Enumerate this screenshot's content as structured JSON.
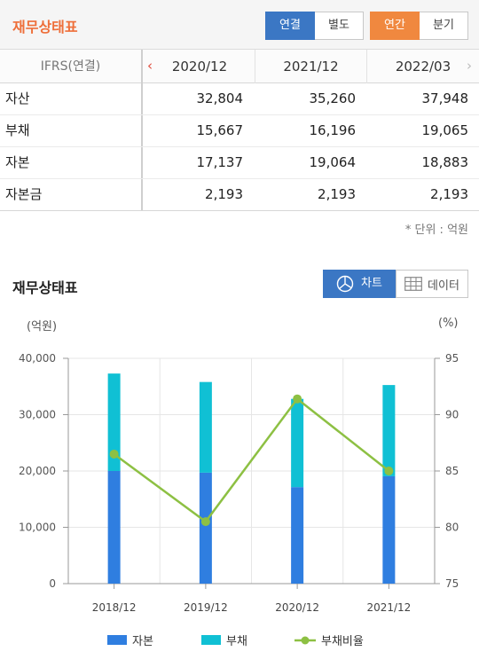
{
  "header": {
    "title": "재무상태표",
    "seg1": [
      "연결",
      "별도"
    ],
    "seg2": [
      "연간",
      "분기"
    ]
  },
  "table": {
    "corner": "IFRS(연결)",
    "prev": "‹",
    "next": "›",
    "columns": [
      "2020/12",
      "2021/12",
      "2022/03"
    ],
    "rows": [
      {
        "label": "자산",
        "values": [
          "32,804",
          "35,260",
          "37,948"
        ]
      },
      {
        "label": "부채",
        "values": [
          "15,667",
          "16,196",
          "19,065"
        ]
      },
      {
        "label": "자본",
        "values": [
          "17,137",
          "19,064",
          "18,883"
        ]
      },
      {
        "label": "자본금",
        "values": [
          "2,193",
          "2,193",
          "2,193"
        ]
      }
    ],
    "unit_note": "* 단위 : 억원"
  },
  "chart_section": {
    "title": "재무상태표",
    "chart_btn": "차트",
    "data_btn": "데이터",
    "left_unit": "(억원)",
    "right_unit": "(%)"
  },
  "colors": {
    "equity": "#2f7ee0",
    "liability": "#10c0d4",
    "ratio": "#8dc043",
    "grid": "#e6e6e6"
  },
  "chart_data": {
    "type": "bar",
    "stacked": true,
    "categories": [
      "2018/12",
      "2019/12",
      "2020/12",
      "2021/12"
    ],
    "series": [
      {
        "name": "자본",
        "values": [
          20000,
          19700,
          17137,
          19064
        ]
      },
      {
        "name": "부채",
        "values": [
          17300,
          16100,
          15667,
          16196
        ]
      },
      {
        "name": "부채비율",
        "type": "line",
        "axis": "right",
        "values": [
          86.5,
          80.5,
          91.4,
          85.0
        ]
      }
    ],
    "ylim": [
      0,
      40000
    ],
    "yticks": [
      "0",
      "10,000",
      "20,000",
      "30,000",
      "40,000"
    ],
    "y2lim": [
      75,
      95
    ],
    "y2ticks": [
      "75",
      "80",
      "85",
      "90",
      "95"
    ],
    "legend": "bottom",
    "grid": true
  }
}
